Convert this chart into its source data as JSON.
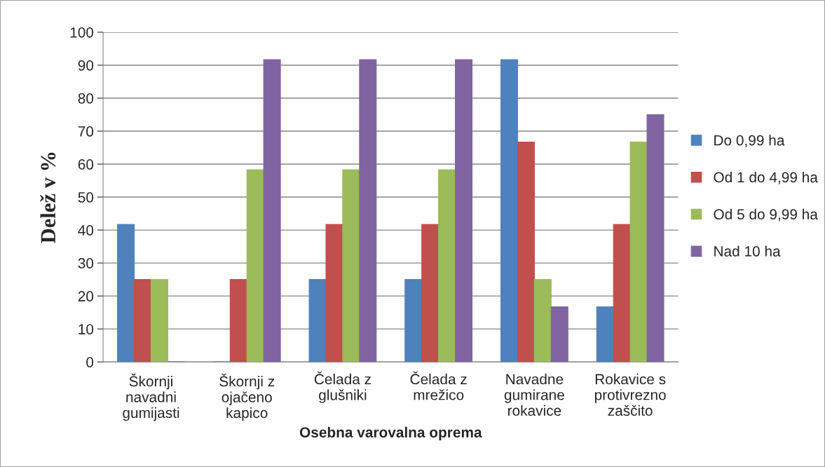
{
  "chart_data": {
    "type": "bar",
    "xlabel": "Osebna varovalna oprema",
    "ylabel": "Delež v %",
    "categories": [
      "Škornji\nnavadni\ngumijasti",
      "Škornji z\nojačeno\nkapico",
      "Čelada z\nglušniki",
      "Čelada z\nmrežico",
      "Navadne\ngumirane\nrokavice",
      "Rokavice s\nprotivrezno\nzaščito"
    ],
    "series": [
      {
        "name": "Do 0,99 ha",
        "color": "#4f81bd",
        "values": [
          41.7,
          0,
          25,
          25,
          91.7,
          16.7
        ]
      },
      {
        "name": "Od 1 do 4,99 ha",
        "color": "#c0504d",
        "values": [
          25,
          25,
          41.7,
          41.7,
          66.7,
          41.7
        ]
      },
      {
        "name": "Od 5 do 9,99 ha",
        "color": "#9bbb59",
        "values": [
          25,
          58.3,
          58.3,
          58.3,
          25,
          66.7
        ]
      },
      {
        "name": "Nad 10 ha",
        "color": "#8064a2",
        "values": [
          0,
          91.7,
          91.7,
          91.7,
          16.7,
          75
        ]
      }
    ],
    "ylim": [
      0,
      100
    ],
    "yticks": [
      0,
      10,
      20,
      30,
      40,
      50,
      60,
      70,
      80,
      90,
      100
    ],
    "grid": "y",
    "legend": "right"
  }
}
